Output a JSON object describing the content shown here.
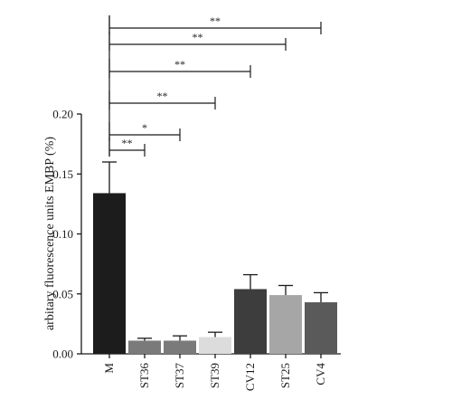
{
  "chart_data": {
    "type": "bar",
    "title": "",
    "xlabel": "",
    "ylabel": "arbitary fluorescence units EMBP (%)",
    "ylim": [
      0,
      0.2
    ],
    "yticks": [
      "0.00",
      "0.05",
      "0.10",
      "0.15",
      "0.20"
    ],
    "ytick_values": [
      0,
      0.05,
      0.1,
      0.15,
      0.2
    ],
    "categories": [
      "M",
      "ST36",
      "ST37",
      "ST39",
      "CV12",
      "ST25",
      "CV4"
    ],
    "values": [
      0.134,
      0.011,
      0.011,
      0.014,
      0.054,
      0.049,
      0.043
    ],
    "errors": [
      0.026,
      0.002,
      0.004,
      0.004,
      0.012,
      0.008,
      0.008
    ],
    "colors": [
      "#1c1c1c",
      "#7a7a7a",
      "#7a7a7a",
      "#dcdcdc",
      "#3d3d3d",
      "#a6a6a6",
      "#5a5a5a"
    ],
    "grid": false,
    "legend": "none",
    "significance": [
      {
        "from": "M",
        "to": "ST36",
        "label": "**"
      },
      {
        "from": "M",
        "to": "ST37",
        "label": "*"
      },
      {
        "from": "M",
        "to": "ST39",
        "label": "**"
      },
      {
        "from": "M",
        "to": "CV12",
        "label": "**"
      },
      {
        "from": "M",
        "to": "ST25",
        "label": "**"
      },
      {
        "from": "M",
        "to": "CV4",
        "label": "**"
      }
    ]
  }
}
